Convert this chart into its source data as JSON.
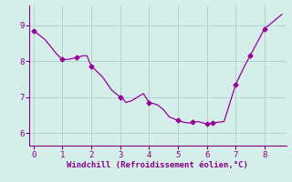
{
  "x": [
    0,
    0.4,
    0.8,
    1.0,
    1.2,
    1.5,
    1.7,
    1.85,
    2.0,
    2.15,
    2.4,
    2.7,
    3.0,
    3.1,
    3.2,
    3.4,
    3.6,
    3.8,
    4.0,
    4.15,
    4.3,
    4.5,
    4.7,
    5.0,
    5.2,
    5.4,
    5.5,
    5.7,
    6.0,
    6.2,
    6.4,
    6.6,
    7.0,
    7.3,
    7.5,
    7.8,
    8.0,
    8.3,
    8.6
  ],
  "y": [
    8.85,
    8.6,
    8.2,
    8.05,
    8.05,
    8.1,
    8.15,
    8.15,
    7.85,
    7.75,
    7.55,
    7.2,
    7.0,
    6.95,
    6.85,
    6.9,
    7.0,
    7.1,
    6.85,
    6.82,
    6.78,
    6.65,
    6.45,
    6.35,
    6.3,
    6.28,
    6.3,
    6.32,
    6.25,
    6.28,
    6.3,
    6.32,
    7.35,
    7.85,
    8.15,
    8.6,
    8.9,
    9.1,
    9.3
  ],
  "color": "#990099",
  "bg_color": "#d5eeea",
  "grid_color": "#aacfca",
  "xlabel": "Windchill (Refroidissement éolien,°C)",
  "xlim": [
    -0.15,
    8.75
  ],
  "ylim": [
    5.65,
    9.55
  ],
  "xticks": [
    0,
    1,
    2,
    3,
    4,
    5,
    6,
    7,
    8
  ],
  "yticks": [
    6,
    7,
    8,
    9
  ],
  "xlabel_color": "#880088",
  "tick_color": "#880088",
  "spine_color": "#880088",
  "marker_x": [
    0,
    1.0,
    1.5,
    2.0,
    3.0,
    4.0,
    5.0,
    5.5,
    6.0,
    6.2,
    7.0,
    7.5,
    8.0
  ],
  "marker_y": [
    8.85,
    8.05,
    8.1,
    7.85,
    7.0,
    6.85,
    6.35,
    6.3,
    6.25,
    6.28,
    7.35,
    8.15,
    8.9
  ]
}
